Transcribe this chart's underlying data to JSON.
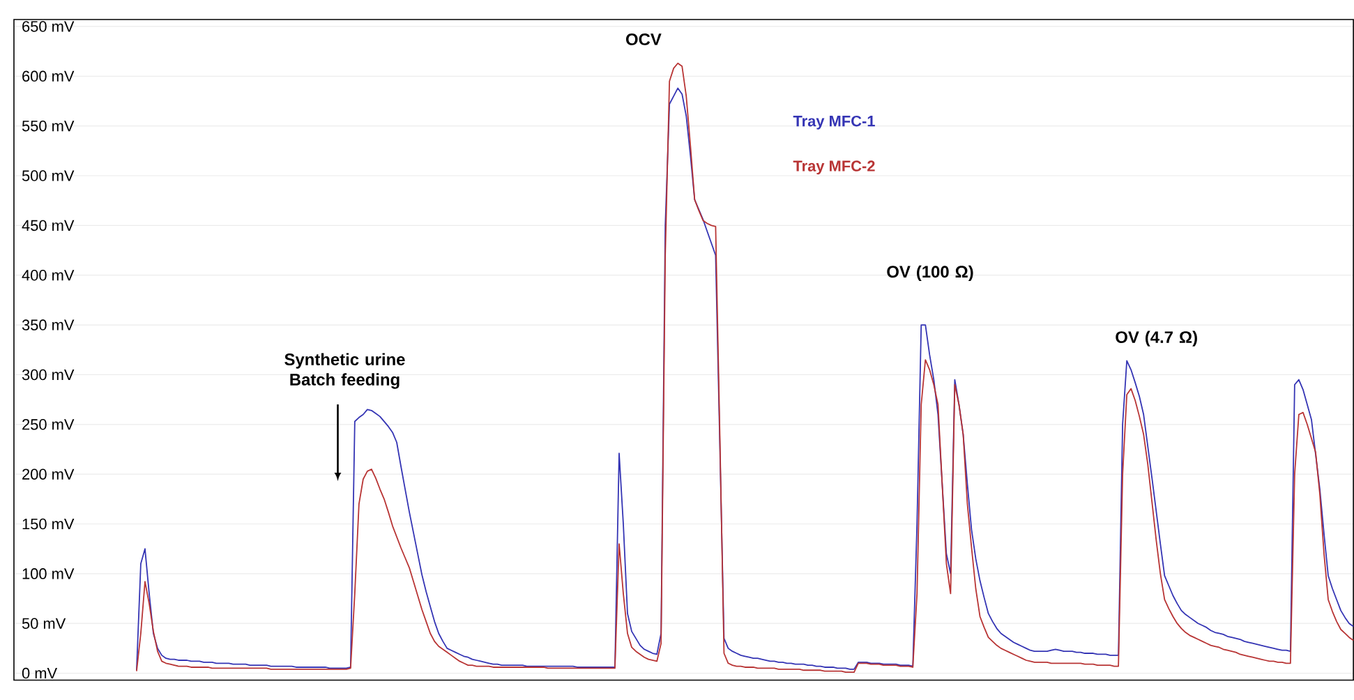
{
  "chart_data": {
    "type": "line",
    "ylim": [
      -7,
      657
    ],
    "tick_labels": "y",
    "grid": "y",
    "marker": "none",
    "line_style": "solid",
    "categories": [
      null,
      null,
      null,
      null,
      null,
      null,
      null,
      null,
      null,
      null,
      null,
      null,
      null,
      null,
      null,
      null,
      null,
      null,
      null,
      null,
      null,
      null,
      null,
      null,
      null,
      null,
      null,
      null,
      null,
      null,
      null,
      null,
      null,
      null,
      null,
      null,
      null,
      null,
      null,
      null,
      null,
      null,
      null,
      null,
      null,
      null,
      null,
      null,
      null,
      null,
      null,
      null,
      null,
      null,
      null,
      null,
      null,
      null,
      null,
      null,
      null,
      null,
      null,
      null,
      null,
      null,
      null,
      null,
      null,
      null,
      null,
      null,
      null,
      null,
      null,
      null,
      null,
      null,
      null,
      null,
      null,
      null,
      null,
      null,
      null,
      null,
      null,
      null,
      null,
      null,
      null,
      null,
      null,
      null,
      null,
      null,
      null,
      null,
      null,
      null,
      null,
      null,
      null,
      null,
      null,
      null,
      null,
      null,
      null,
      null,
      null,
      null,
      null,
      null,
      null,
      null,
      null,
      null,
      null,
      null,
      null,
      null,
      null,
      null,
      null,
      null,
      null,
      null,
      null,
      null,
      null,
      null,
      null,
      null,
      null,
      null,
      null,
      null,
      null,
      null,
      null,
      null,
      null,
      null,
      null,
      null,
      null,
      null,
      null,
      null,
      null,
      null,
      null,
      null,
      null,
      null,
      null,
      null,
      null,
      null,
      null,
      null,
      null,
      null,
      null,
      null,
      null,
      null,
      null,
      null,
      null,
      null,
      null,
      null,
      null,
      null,
      null,
      null,
      null,
      null,
      null,
      null,
      null,
      null,
      null,
      null,
      null,
      null,
      null,
      null,
      null,
      null,
      null,
      null,
      null,
      null,
      null,
      null,
      null,
      null,
      null,
      null,
      null,
      null,
      null,
      null,
      null,
      null,
      null,
      null,
      null,
      null,
      null,
      null,
      null,
      null,
      null,
      null,
      null,
      null,
      null,
      null,
      null,
      null,
      null,
      null,
      null,
      null,
      null,
      null,
      null,
      null,
      null,
      null,
      null,
      null,
      null,
      null,
      null,
      null,
      null,
      null,
      null,
      null,
      null,
      null,
      null,
      null,
      null,
      null,
      null,
      null,
      null,
      null,
      null,
      null,
      null,
      null,
      null,
      null,
      null,
      null,
      null,
      null,
      null,
      null,
      null,
      null,
      null,
      null,
      null,
      null,
      null,
      null,
      null,
      null,
      null,
      null,
      null,
      null,
      null,
      null,
      null,
      null,
      null,
      null,
      null,
      null,
      null,
      null,
      null
    ],
    "yticks": [
      {
        "value": 0,
        "label": "0 mV"
      },
      {
        "value": 50,
        "label": "50 mV"
      },
      {
        "value": 100,
        "label": "100 mV"
      },
      {
        "value": 150,
        "label": "150 mV"
      },
      {
        "value": 200,
        "label": "200 mV"
      },
      {
        "value": 250,
        "label": "250 mV"
      },
      {
        "value": 300,
        "label": "300 mV"
      },
      {
        "value": 350,
        "label": "350 mV"
      },
      {
        "value": 400,
        "label": "400 mV"
      },
      {
        "value": 450,
        "label": "450 mV"
      },
      {
        "value": 500,
        "label": "500 mV"
      },
      {
        "value": 550,
        "label": "550 mV"
      },
      {
        "value": 600,
        "label": "600 mV"
      },
      {
        "value": 650,
        "label": "650 mV"
      }
    ],
    "series": [
      {
        "name": "Tray MFC-1",
        "color": "#3434b4",
        "values": [
          3,
          110,
          125,
          80,
          40,
          25,
          18,
          15,
          14,
          14,
          13,
          13,
          13,
          12,
          12,
          12,
          11,
          11,
          11,
          10,
          10,
          10,
          10,
          9,
          9,
          9,
          9,
          8,
          8,
          8,
          8,
          8,
          7,
          7,
          7,
          7,
          7,
          7,
          6,
          6,
          6,
          6,
          6,
          6,
          6,
          6,
          5,
          5,
          5,
          5,
          5,
          6,
          253,
          257,
          260,
          265,
          264,
          261,
          258,
          253,
          248,
          242,
          232,
          208,
          185,
          162,
          141,
          120,
          99,
          82,
          67,
          52,
          40,
          32,
          25,
          23,
          21,
          19,
          17,
          16,
          14,
          13,
          12,
          11,
          10,
          9,
          9,
          8,
          8,
          8,
          8,
          8,
          8,
          7,
          7,
          7,
          7,
          7,
          7,
          7,
          7,
          7,
          7,
          7,
          7,
          6,
          6,
          6,
          6,
          6,
          6,
          6,
          6,
          6,
          6,
          221,
          150,
          60,
          42,
          35,
          28,
          24,
          22,
          20,
          19,
          40,
          450,
          572,
          580,
          588,
          582,
          560,
          520,
          476,
          466,
          456,
          444,
          432,
          420,
          230,
          35,
          25,
          22,
          20,
          18,
          17,
          16,
          15,
          15,
          14,
          13,
          12,
          12,
          11,
          11,
          10,
          10,
          9,
          9,
          9,
          8,
          8,
          7,
          7,
          6,
          6,
          6,
          5,
          5,
          5,
          4,
          4,
          11,
          11,
          11,
          10,
          10,
          10,
          9,
          9,
          9,
          9,
          8,
          8,
          8,
          7,
          150,
          350,
          350,
          320,
          295,
          260,
          190,
          120,
          100,
          295,
          270,
          240,
          190,
          144,
          115,
          93,
          76,
          60,
          52,
          45,
          40,
          37,
          34,
          31,
          29,
          27,
          25,
          23,
          22,
          22,
          22,
          22,
          23,
          24,
          23,
          22,
          22,
          22,
          21,
          21,
          20,
          20,
          20,
          19,
          19,
          19,
          18,
          18,
          18,
          250,
          314,
          305,
          292,
          278,
          260,
          228,
          196,
          163,
          130,
          98,
          88,
          78,
          70,
          63,
          59,
          56,
          53,
          50,
          48,
          46,
          43,
          41,
          40,
          39,
          37,
          36,
          35,
          34,
          32,
          31,
          30,
          29,
          28,
          27,
          26,
          25,
          24,
          23,
          23,
          22,
          290,
          295,
          285,
          270,
          255,
          220,
          185,
          140,
          98,
          85,
          74,
          63,
          56,
          50,
          47
        ]
      },
      {
        "name": "Tray MFC-2",
        "color": "#b83434",
        "values": [
          2,
          40,
          92,
          70,
          42,
          22,
          12,
          10,
          9,
          8,
          7,
          7,
          7,
          6,
          6,
          6,
          6,
          6,
          5,
          5,
          5,
          5,
          5,
          5,
          5,
          5,
          5,
          5,
          5,
          5,
          5,
          5,
          4,
          4,
          4,
          4,
          4,
          4,
          4,
          4,
          4,
          4,
          4,
          4,
          4,
          4,
          4,
          4,
          4,
          4,
          4,
          5,
          80,
          170,
          195,
          203,
          205,
          196,
          185,
          175,
          162,
          148,
          137,
          126,
          116,
          106,
          92,
          78,
          64,
          52,
          40,
          32,
          27,
          24,
          21,
          18,
          15,
          12,
          10,
          8,
          8,
          7,
          7,
          7,
          7,
          6,
          6,
          6,
          6,
          6,
          6,
          6,
          6,
          6,
          6,
          6,
          6,
          6,
          5,
          5,
          5,
          5,
          5,
          5,
          5,
          5,
          5,
          5,
          5,
          5,
          5,
          5,
          5,
          5,
          5,
          130,
          80,
          40,
          26,
          22,
          19,
          16,
          14,
          13,
          12,
          30,
          420,
          595,
          608,
          613,
          610,
          580,
          530,
          476,
          465,
          455,
          452,
          450,
          449,
          240,
          20,
          10,
          8,
          7,
          7,
          6,
          6,
          6,
          5,
          5,
          5,
          5,
          5,
          4,
          4,
          4,
          4,
          4,
          4,
          3,
          3,
          3,
          3,
          3,
          2,
          2,
          2,
          2,
          2,
          1,
          1,
          1,
          10,
          10,
          10,
          9,
          9,
          9,
          8,
          8,
          8,
          8,
          7,
          7,
          7,
          6,
          80,
          270,
          315,
          305,
          290,
          270,
          190,
          110,
          80,
          290,
          270,
          240,
          170,
          126,
          85,
          57,
          46,
          36,
          32,
          28,
          25,
          23,
          21,
          19,
          17,
          15,
          13,
          12,
          11,
          11,
          11,
          11,
          10,
          10,
          10,
          10,
          10,
          10,
          10,
          10,
          9,
          9,
          9,
          8,
          8,
          8,
          8,
          7,
          7,
          200,
          280,
          286,
          274,
          258,
          240,
          210,
          172,
          134,
          100,
          74,
          65,
          57,
          50,
          45,
          41,
          38,
          36,
          34,
          32,
          30,
          28,
          27,
          26,
          24,
          23,
          22,
          21,
          19,
          18,
          17,
          16,
          15,
          14,
          13,
          12,
          12,
          11,
          11,
          10,
          10,
          200,
          260,
          262,
          250,
          236,
          222,
          180,
          120,
          74,
          62,
          52,
          44,
          40,
          36,
          33
        ]
      }
    ],
    "annotations": [
      "Synthetic urine Batch feeding",
      "OCV",
      "OV (100 Ω)",
      "OV (4.7 Ω)"
    ]
  }
}
